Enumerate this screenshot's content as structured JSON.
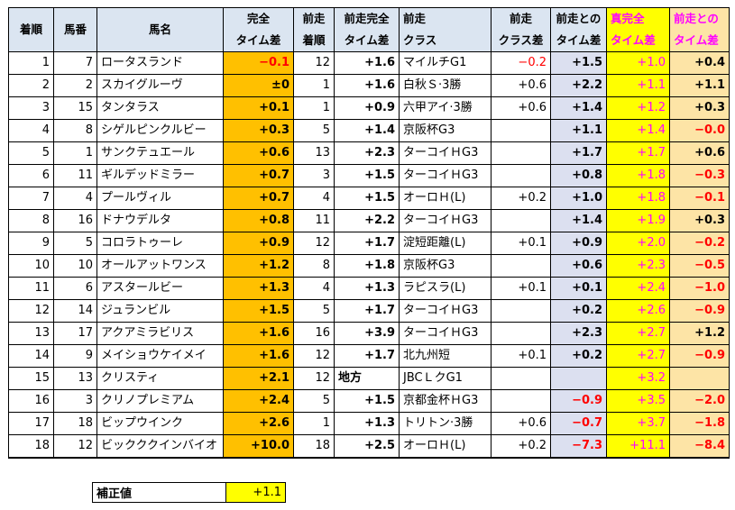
{
  "headers": {
    "chakujun": "着順",
    "umaban": "馬番",
    "bamei": "馬名",
    "kanzen_top": "完全",
    "kanzen_bottom": "タイム差",
    "zenso_top": "前走",
    "zenso_bottom": "着順",
    "zenso_kanzen_top": "前走完全",
    "zenso_kanzen_bottom": "タイム差",
    "zenso_class_top": "前走",
    "zenso_class_bottom": "クラス",
    "class_sa_top": "前走",
    "class_sa_bottom": "クラス差",
    "zenso_time_top": "前走との",
    "zenso_time_bottom": "タイム差",
    "shin_top": "真完全",
    "shin_bottom": "タイム差",
    "zenso_to_top": "前走との",
    "zenso_to_bottom": "タイム差"
  },
  "rows": [
    {
      "rank": "1",
      "num": "7",
      "name": "ロータスランド",
      "kanzen": "−0.1",
      "kanzen_red": true,
      "prev_rank": "12",
      "prev_kanzen": "+1.6",
      "prev_class": "マイルチG1",
      "class_diff": "−0.2",
      "class_diff_red": true,
      "prev_time": "+1.5",
      "prev_time_red": false,
      "shin": "+1.0",
      "diff": "+0.4",
      "diff_red": false
    },
    {
      "rank": "2",
      "num": "2",
      "name": "スカイグルーヴ",
      "kanzen": "±0",
      "kanzen_red": false,
      "prev_rank": "1",
      "prev_kanzen": "+1.6",
      "prev_class": "白秋Ｓ·3勝",
      "class_diff": "+0.6",
      "class_diff_red": false,
      "prev_time": "+2.2",
      "prev_time_red": false,
      "shin": "+1.1",
      "diff": "+1.1",
      "diff_red": false
    },
    {
      "rank": "3",
      "num": "15",
      "name": "タンタラス",
      "kanzen": "+0.1",
      "kanzen_red": false,
      "prev_rank": "1",
      "prev_kanzen": "+0.9",
      "prev_class": "六甲アイ·3勝",
      "class_diff": "+0.6",
      "class_diff_red": false,
      "prev_time": "+1.4",
      "prev_time_red": false,
      "shin": "+1.2",
      "diff": "+0.3",
      "diff_red": false
    },
    {
      "rank": "4",
      "num": "8",
      "name": "シゲルピンクルビー",
      "kanzen": "+0.3",
      "kanzen_red": false,
      "prev_rank": "5",
      "prev_kanzen": "+1.4",
      "prev_class": "京阪杯G3",
      "class_diff": "",
      "class_diff_red": false,
      "prev_time": "+1.1",
      "prev_time_red": false,
      "shin": "+1.4",
      "diff": "−0.0",
      "diff_red": true
    },
    {
      "rank": "5",
      "num": "1",
      "name": "サンクテュエール",
      "kanzen": "+0.6",
      "kanzen_red": false,
      "prev_rank": "13",
      "prev_kanzen": "+2.3",
      "prev_class": "ターコイＨG3",
      "class_diff": "",
      "class_diff_red": false,
      "prev_time": "+1.7",
      "prev_time_red": false,
      "shin": "+1.7",
      "diff": "+0.6",
      "diff_red": false
    },
    {
      "rank": "6",
      "num": "11",
      "name": "ギルデッドミラー",
      "kanzen": "+0.7",
      "kanzen_red": false,
      "prev_rank": "3",
      "prev_kanzen": "+1.5",
      "prev_class": "ターコイＨG3",
      "class_diff": "",
      "class_diff_red": false,
      "prev_time": "+0.8",
      "prev_time_red": false,
      "shin": "+1.8",
      "diff": "−0.3",
      "diff_red": true
    },
    {
      "rank": "7",
      "num": "4",
      "name": "プールヴィル",
      "kanzen": "+0.7",
      "kanzen_red": false,
      "prev_rank": "4",
      "prev_kanzen": "+1.5",
      "prev_class": "オーロＨ(L)",
      "class_diff": "+0.2",
      "class_diff_red": false,
      "prev_time": "+1.0",
      "prev_time_red": false,
      "shin": "+1.8",
      "diff": "−0.1",
      "diff_red": true
    },
    {
      "rank": "8",
      "num": "16",
      "name": "ドナウデルタ",
      "kanzen": "+0.8",
      "kanzen_red": false,
      "prev_rank": "11",
      "prev_kanzen": "+2.2",
      "prev_class": "ターコイＨG3",
      "class_diff": "",
      "class_diff_red": false,
      "prev_time": "+1.4",
      "prev_time_red": false,
      "shin": "+1.9",
      "diff": "+0.3",
      "diff_red": false
    },
    {
      "rank": "9",
      "num": "5",
      "name": "コロラトゥーレ",
      "kanzen": "+0.9",
      "kanzen_red": false,
      "prev_rank": "12",
      "prev_kanzen": "+1.7",
      "prev_class": "淀短距離(L)",
      "class_diff": "+0.1",
      "class_diff_red": false,
      "prev_time": "+0.9",
      "prev_time_red": false,
      "shin": "+2.0",
      "diff": "−0.2",
      "diff_red": true
    },
    {
      "rank": "10",
      "num": "10",
      "name": "オールアットワンス",
      "kanzen": "+1.2",
      "kanzen_red": false,
      "prev_rank": "8",
      "prev_kanzen": "+1.8",
      "prev_class": "京阪杯G3",
      "class_diff": "",
      "class_diff_red": false,
      "prev_time": "+0.6",
      "prev_time_red": false,
      "shin": "+2.3",
      "diff": "−0.5",
      "diff_red": true
    },
    {
      "rank": "11",
      "num": "6",
      "name": "アスタールビー",
      "kanzen": "+1.3",
      "kanzen_red": false,
      "prev_rank": "4",
      "prev_kanzen": "+1.3",
      "prev_class": "ラピスラ(L)",
      "class_diff": "+0.1",
      "class_diff_red": false,
      "prev_time": "+0.1",
      "prev_time_red": false,
      "shin": "+2.4",
      "diff": "−1.0",
      "diff_red": true
    },
    {
      "rank": "12",
      "num": "14",
      "name": "ジュランビル",
      "kanzen": "+1.5",
      "kanzen_red": false,
      "prev_rank": "5",
      "prev_kanzen": "+1.7",
      "prev_class": "ターコイＨG3",
      "class_diff": "",
      "class_diff_red": false,
      "prev_time": "+0.2",
      "prev_time_red": false,
      "shin": "+2.6",
      "diff": "−0.9",
      "diff_red": true
    },
    {
      "rank": "13",
      "num": "17",
      "name": "アクアミラビリス",
      "kanzen": "+1.6",
      "kanzen_red": false,
      "prev_rank": "16",
      "prev_kanzen": "+3.9",
      "prev_class": "ターコイＨG3",
      "class_diff": "",
      "class_diff_red": false,
      "prev_time": "+2.3",
      "prev_time_red": false,
      "shin": "+2.7",
      "diff": "+1.2",
      "diff_red": false
    },
    {
      "rank": "14",
      "num": "9",
      "name": "メイショウケイメイ",
      "kanzen": "+1.6",
      "kanzen_red": false,
      "prev_rank": "12",
      "prev_kanzen": "+1.7",
      "prev_class": "北九州短",
      "class_diff": "+0.1",
      "class_diff_red": false,
      "prev_time": "+0.2",
      "prev_time_red": false,
      "shin": "+2.7",
      "diff": "−0.9",
      "diff_red": true
    },
    {
      "rank": "15",
      "num": "13",
      "name": "クリスティ",
      "kanzen": "+2.1",
      "kanzen_red": false,
      "prev_rank": "12",
      "prev_kanzen": "地方",
      "prev_kanzen_left": true,
      "prev_class": "JBCＬクG1",
      "class_diff": "",
      "class_diff_red": false,
      "prev_time": "",
      "prev_time_red": false,
      "shin": "+3.2",
      "diff": "",
      "diff_red": false
    },
    {
      "rank": "16",
      "num": "3",
      "name": "クリノプレミアム",
      "kanzen": "+2.4",
      "kanzen_red": false,
      "prev_rank": "5",
      "prev_kanzen": "+1.5",
      "prev_class": "京都金杯ＨG3",
      "class_diff": "",
      "class_diff_red": false,
      "prev_time": "−0.9",
      "prev_time_red": true,
      "shin": "+3.5",
      "diff": "−2.0",
      "diff_red": true
    },
    {
      "rank": "17",
      "num": "18",
      "name": "ビップウインク",
      "kanzen": "+2.6",
      "kanzen_red": false,
      "prev_rank": "1",
      "prev_kanzen": "+1.3",
      "prev_class": "トリトン·3勝",
      "class_diff": "+0.6",
      "class_diff_red": false,
      "prev_time": "−0.7",
      "prev_time_red": true,
      "shin": "+3.7",
      "diff": "−1.8",
      "diff_red": true
    },
    {
      "rank": "18",
      "num": "12",
      "name": "ビックククインバイオ",
      "kanzen": "+10.0",
      "kanzen_red": false,
      "prev_rank": "18",
      "prev_kanzen": "+2.5",
      "prev_class": "オーロＨ(L)",
      "class_diff": "+0.2",
      "class_diff_red": false,
      "prev_time": "−7.3",
      "prev_time_red": true,
      "shin": "+11.1",
      "diff": "−8.4",
      "diff_red": true
    }
  ],
  "hosei": {
    "label": "補正値",
    "value": "+1.1"
  },
  "colors": {
    "header_bg": "#dbe5f1",
    "orange": "#ffc000",
    "lavender": "#dce0f0",
    "yellow": "#ffff00",
    "peach": "#fde4a6",
    "red": "#ff0000",
    "pink": "#ff00ff"
  }
}
